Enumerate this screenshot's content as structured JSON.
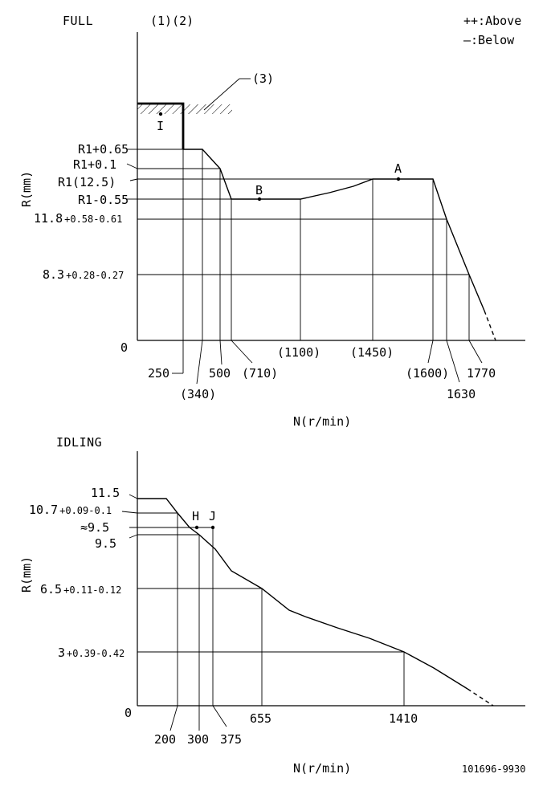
{
  "legend": {
    "above": "++:Above",
    "below": "—:Below"
  },
  "full": {
    "title": "FULL",
    "markers": "(1)(2)",
    "stop_label": "(3)",
    "y_axis_label": "R(mm)",
    "x_axis_label": "N(r/min)",
    "origin": "0",
    "y_ticks": [
      "R1+0.65",
      "R1+0.1",
      "R1(12.5)",
      "R1-0.55"
    ],
    "y_tick_118": {
      "main": "11.8",
      "tol": "+0.58-0.61"
    },
    "y_tick_83": {
      "main": "8.3",
      "tol": "+0.28-0.27"
    },
    "x_ticks": [
      "250",
      "(340)",
      "500",
      "(710)",
      "(1100)",
      "(1450)",
      "(1600)",
      "1630",
      "1770"
    ],
    "points": {
      "I": "I",
      "A": "A",
      "B": "B"
    }
  },
  "idling": {
    "title": "IDLING",
    "y_axis_label": "R(mm)",
    "x_axis_label": "N(r/min)",
    "origin": "0",
    "y_tick_115": "11.5",
    "y_tick_107": {
      "main": "10.7",
      "tol": "+0.09-0.1"
    },
    "y_tick_approx95": "≈9.5",
    "y_tick_95": "9.5",
    "y_tick_65": {
      "main": "6.5",
      "tol": "+0.11-0.12"
    },
    "y_tick_3": {
      "main": "3",
      "tol": "+0.39-0.42"
    },
    "x_ticks": [
      "200",
      "300",
      "375",
      "655",
      "1410"
    ],
    "points": {
      "H": "H",
      "J": "J"
    }
  },
  "doc_number": "101696-9930"
}
